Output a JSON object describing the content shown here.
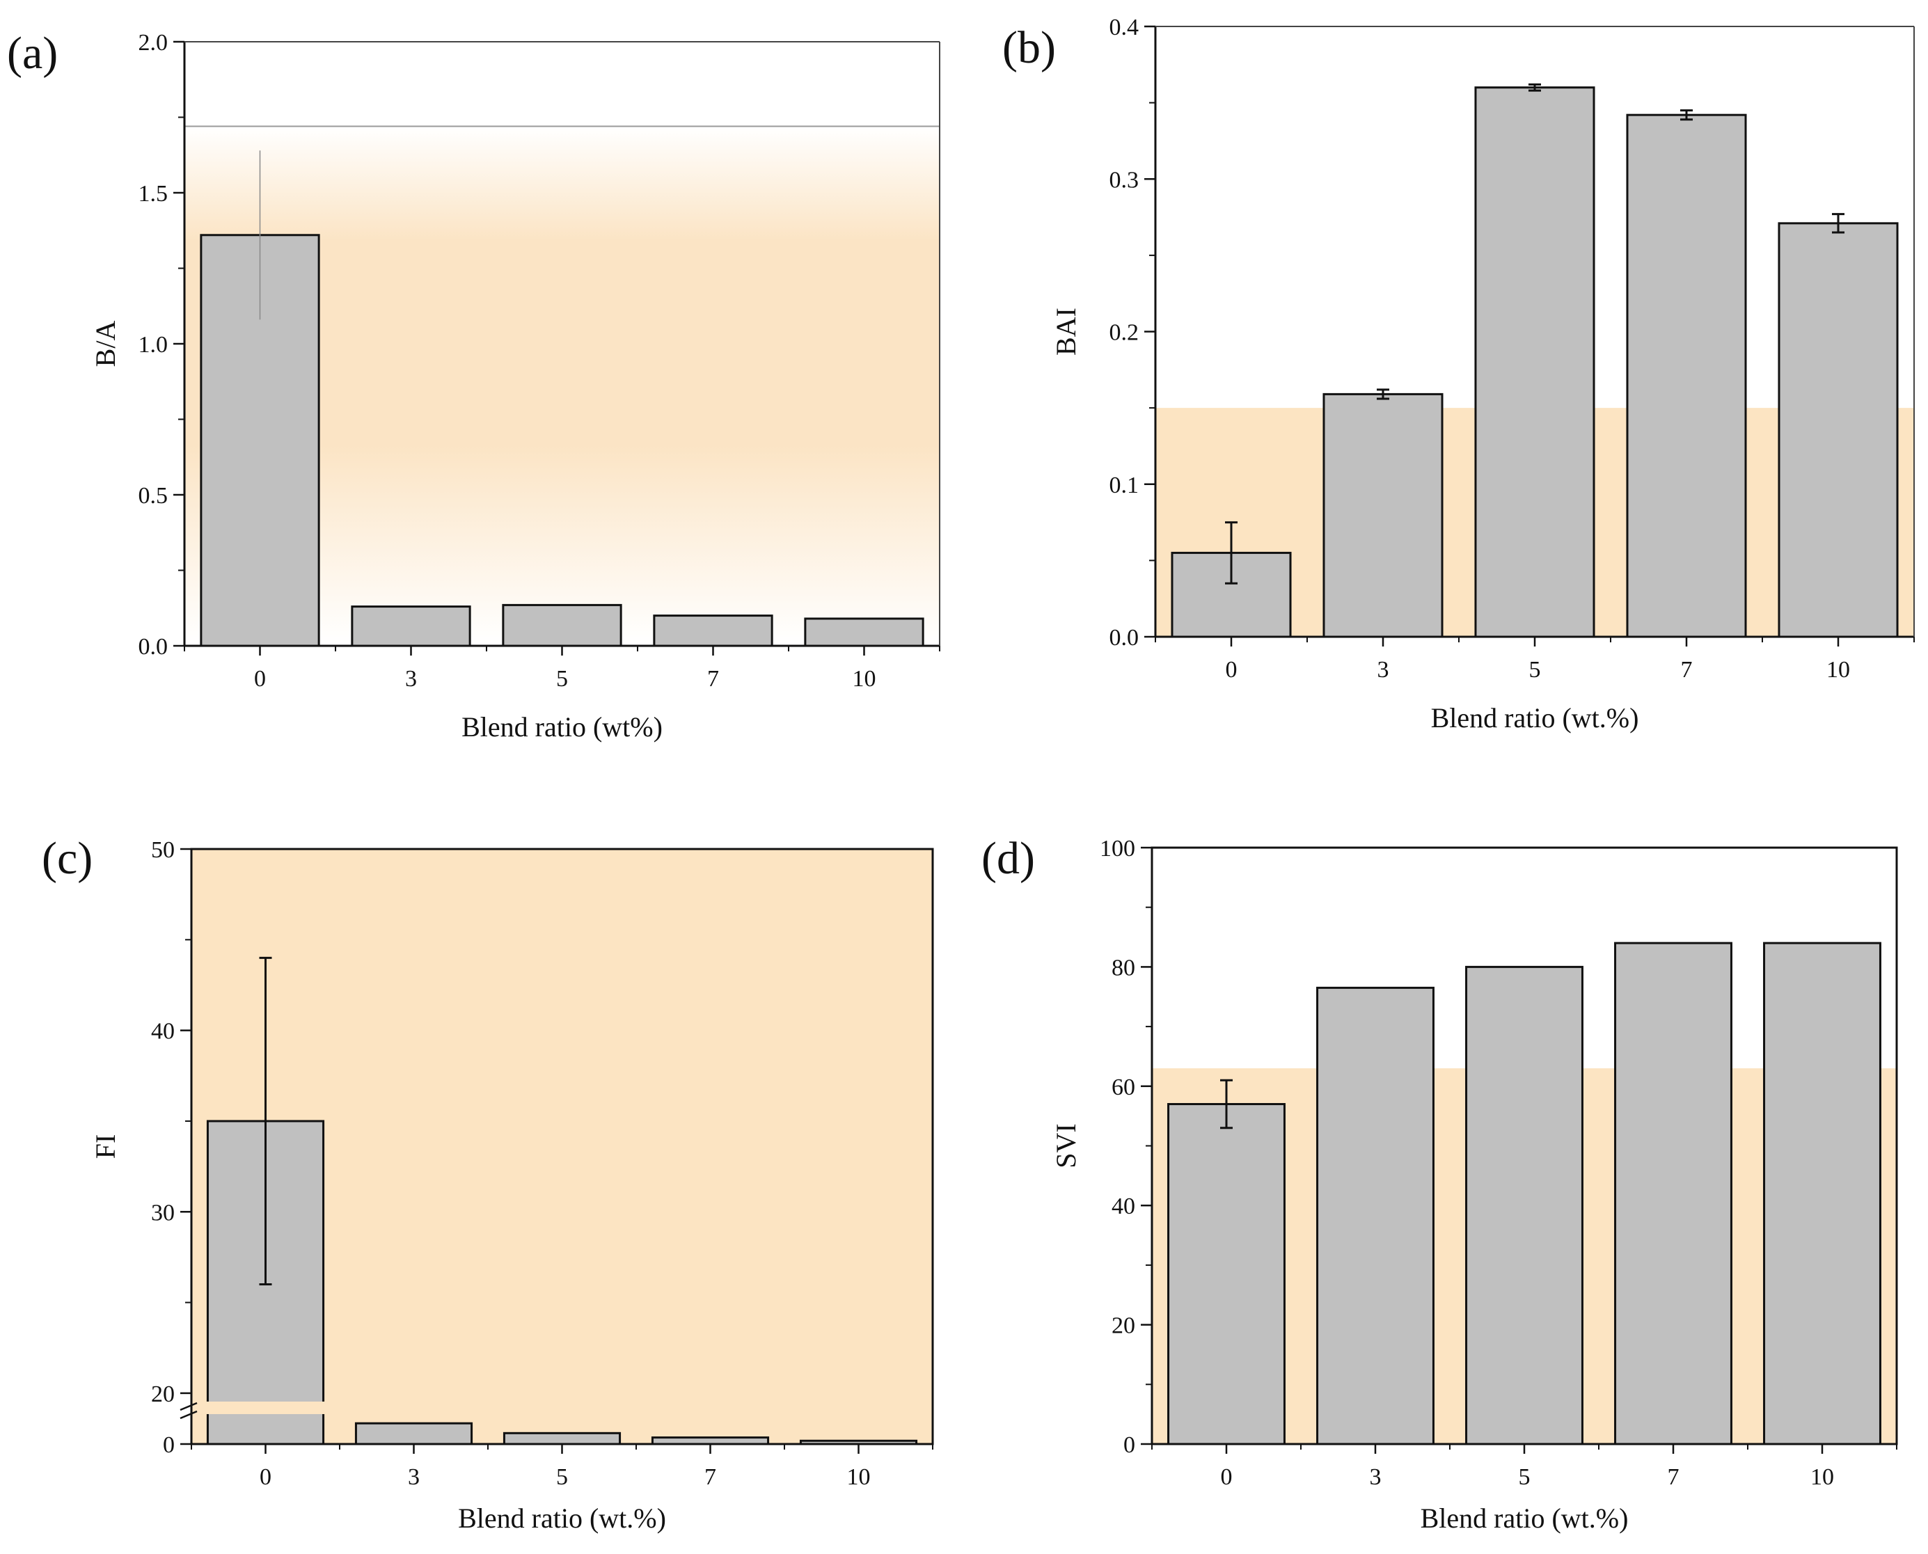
{
  "chart_data": [
    {
      "panel": "(a)",
      "type": "bar",
      "categories": [
        "0",
        "3",
        "5",
        "7",
        "10"
      ],
      "values": [
        1.36,
        0.13,
        0.135,
        0.1,
        0.09
      ],
      "errors": [
        0.28,
        0,
        0,
        0,
        0
      ],
      "xlabel": "Blend ratio (wt%)",
      "ylabel": "B/A",
      "ylim": [
        0,
        2.0
      ],
      "yticks": [
        "0.0",
        "0.5",
        "1.0",
        "1.5",
        "2.0"
      ],
      "reference_line": 1.72,
      "shading": "gradient"
    },
    {
      "panel": "(b)",
      "type": "bar",
      "categories": [
        "0",
        "3",
        "5",
        "7",
        "10"
      ],
      "values": [
        0.055,
        0.159,
        0.36,
        0.342,
        0.271
      ],
      "errors": [
        0.02,
        0.003,
        0.002,
        0.003,
        0.006
      ],
      "xlabel": "Blend ratio (wt.%)",
      "ylabel": "BAI",
      "ylim": [
        0,
        0.4
      ],
      "yticks": [
        "0.0",
        "0.1",
        "0.2",
        "0.3",
        "0.4"
      ],
      "shaded_band": [
        0,
        0.15
      ]
    },
    {
      "panel": "(c)",
      "type": "bar",
      "categories": [
        "0",
        "3",
        "5",
        "7",
        "10"
      ],
      "values": [
        35.0,
        1.9,
        1.0,
        0.6,
        0.3
      ],
      "errors": [
        9.0,
        0,
        0,
        0,
        0
      ],
      "xlabel": "Blend ratio (wt.%)",
      "ylabel": "FI",
      "ylim": [
        0,
        50
      ],
      "yticks": [
        "0",
        "20",
        "30",
        "40",
        "50"
      ],
      "axis_break": [
        3,
        19
      ],
      "shaded_band": [
        0,
        50
      ]
    },
    {
      "panel": "(d)",
      "type": "bar",
      "categories": [
        "0",
        "3",
        "5",
        "7",
        "10"
      ],
      "values": [
        57,
        76.5,
        80,
        84,
        84
      ],
      "errors": [
        4,
        0,
        0,
        0,
        0
      ],
      "xlabel": "Blend ratio (wt.%)",
      "ylabel": "SVI",
      "ylim": [
        0,
        100
      ],
      "yticks": [
        "0",
        "20",
        "40",
        "60",
        "80",
        "100"
      ],
      "shaded_band": [
        0,
        63
      ]
    }
  ],
  "colors": {
    "bar": "#c0c0c0",
    "shade": "#fce4c2",
    "frame": "#000000"
  }
}
